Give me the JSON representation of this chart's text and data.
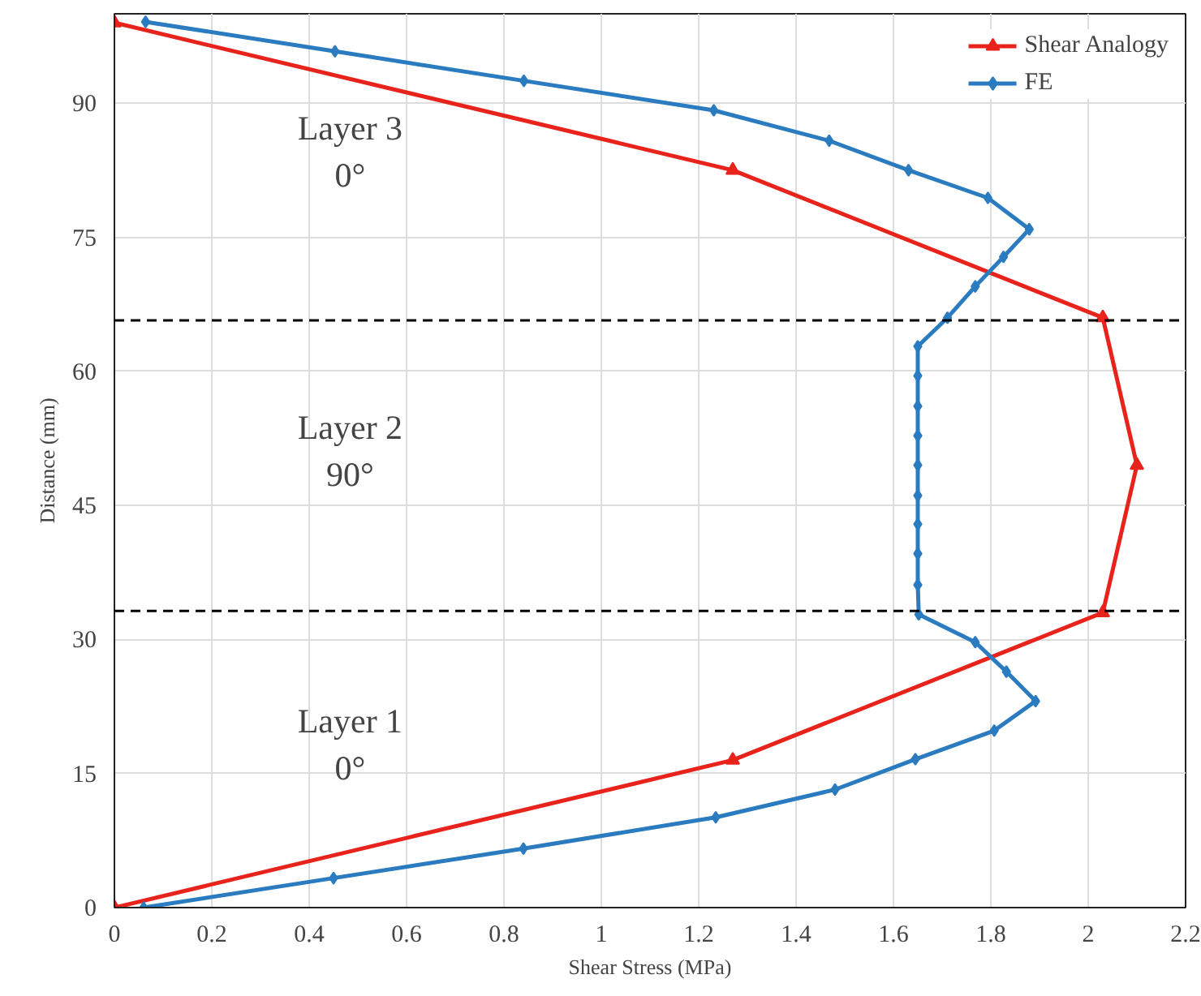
{
  "chart_data": {
    "type": "line",
    "xlabel": "Shear Stress (MPa)",
    "ylabel": "Distance (mm)",
    "xlim": [
      0,
      2.2
    ],
    "xticks": [
      0,
      0.2,
      0.4,
      0.6,
      0.8,
      1,
      1.2,
      1.4,
      1.6,
      1.8,
      2,
      2.2
    ],
    "ylim": [
      0,
      100
    ],
    "yticks": [
      0,
      15,
      30,
      45,
      60,
      75,
      90
    ],
    "grid": true,
    "legend": "top right",
    "line_style": "solid",
    "series": [
      {
        "name": "Shear Analogy",
        "color": "#e8231c",
        "marker": "triangle",
        "x": [
          0,
          1.27,
          2.03,
          2.1,
          2.03,
          1.27,
          0
        ],
        "values": [
          0,
          16.5,
          33,
          49.5,
          66,
          82.5,
          99
        ]
      },
      {
        "name": "FE",
        "color": "#2a7bbf",
        "marker": "diamond",
        "x": [
          0.06,
          0.45,
          0.84,
          1.235,
          1.48,
          1.645,
          1.807,
          1.892,
          1.832,
          1.768,
          1.652,
          1.65,
          1.65,
          1.65,
          1.65,
          1.65,
          1.65,
          1.65,
          1.65,
          1.65,
          1.711,
          1.768,
          1.826,
          1.879,
          1.794,
          1.631,
          1.468,
          1.231,
          0.841,
          0.453,
          0.064
        ],
        "values": [
          0,
          3.3,
          6.6,
          10.1,
          13.2,
          16.6,
          19.8,
          23.1,
          26.4,
          29.7,
          32.8,
          36.1,
          39.6,
          42.9,
          46.1,
          49.5,
          52.8,
          56.1,
          59.5,
          62.8,
          66.0,
          69.5,
          72.8,
          75.9,
          79.4,
          82.5,
          85.8,
          89.2,
          92.5,
          95.8,
          99.1
        ]
      }
    ],
    "ref_lines": [
      {
        "axis": "y",
        "value": 65.7,
        "color": "#000000",
        "line_style": "dashed"
      },
      {
        "axis": "y",
        "value": 33.2,
        "color": "#000000",
        "line_style": "dashed"
      }
    ],
    "annotations": [
      "Layer 3\n0°",
      "Layer 2\n90°",
      "Layer 1\n0°"
    ]
  }
}
